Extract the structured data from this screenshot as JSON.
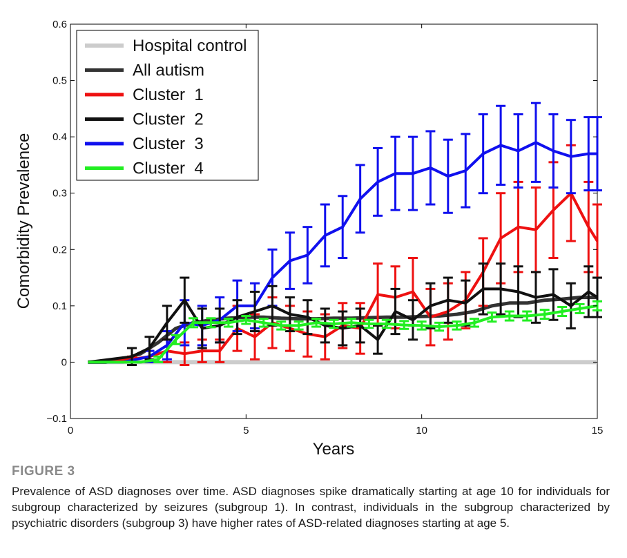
{
  "chart_data": {
    "type": "line",
    "title": "",
    "xlabel": "Years",
    "ylabel": "Comorbidity Prevalence",
    "xlim": [
      0,
      15
    ],
    "ylim": [
      -0.1,
      0.6
    ],
    "x_ticks": [
      "0",
      "5",
      "10",
      "15"
    ],
    "y_ticks": [
      "−0.1",
      "0",
      "0.1",
      "0.2",
      "0.3",
      "0.4",
      "0.5",
      "0.6"
    ],
    "grid": false,
    "legend_position": "top-left",
    "series": [
      {
        "name": "Hospital control",
        "color": "#cccccc",
        "x": [
          0.5,
          15
        ],
        "y": [
          0,
          0
        ]
      },
      {
        "name": "All autism",
        "color": "#333333",
        "x": [
          0.5,
          1,
          1.5,
          2,
          2.5,
          3,
          3.5,
          4,
          4.5,
          5,
          5.5,
          6,
          6.5,
          7,
          7.5,
          8,
          8.5,
          9,
          9.5,
          10,
          10.5,
          11,
          11.5,
          12,
          12.5,
          13,
          13.5,
          14,
          14.5,
          15
        ],
        "y": [
          0,
          0,
          0.005,
          0.015,
          0.035,
          0.06,
          0.07,
          0.075,
          0.078,
          0.08,
          0.08,
          0.078,
          0.077,
          0.077,
          0.078,
          0.078,
          0.079,
          0.08,
          0.08,
          0.081,
          0.082,
          0.085,
          0.09,
          0.1,
          0.105,
          0.105,
          0.11,
          0.112,
          0.115,
          0.115
        ]
      },
      {
        "name": "Cluster 1",
        "color": "#ee1111",
        "x": [
          0.5,
          1.75,
          2.25,
          2.75,
          3.25,
          3.75,
          4.25,
          4.75,
          5.25,
          5.75,
          6.25,
          6.75,
          7.25,
          7.75,
          8.25,
          8.75,
          9.25,
          9.75,
          10.25,
          10.75,
          11.25,
          11.75,
          12.25,
          12.75,
          13.25,
          13.75,
          14.25,
          14.75,
          15
        ],
        "y": [
          0,
          0.005,
          0.01,
          0.02,
          0.015,
          0.02,
          0.02,
          0.06,
          0.045,
          0.07,
          0.06,
          0.05,
          0.045,
          0.065,
          0.06,
          0.12,
          0.115,
          0.125,
          0.08,
          0.09,
          0.11,
          0.16,
          0.22,
          0.24,
          0.235,
          0.27,
          0.3,
          0.24,
          0.215
        ],
        "err": [
          0,
          0.005,
          0.01,
          0.02,
          0.02,
          0.02,
          0.02,
          0.04,
          0.04,
          0.045,
          0.04,
          0.04,
          0.04,
          0.04,
          0.045,
          0.055,
          0.055,
          0.06,
          0.05,
          0.05,
          0.05,
          0.06,
          0.08,
          0.08,
          0.075,
          0.085,
          0.085,
          0.08,
          0.065
        ]
      },
      {
        "name": "Cluster 2",
        "color": "#111111",
        "x": [
          0.5,
          1.75,
          2.25,
          2.75,
          3.25,
          3.75,
          4.25,
          4.75,
          5.25,
          5.75,
          6.25,
          6.75,
          7.25,
          7.75,
          8.25,
          8.75,
          9.25,
          9.75,
          10.25,
          10.75,
          11.25,
          11.75,
          12.25,
          12.75,
          13.25,
          13.75,
          14.25,
          14.75,
          15
        ],
        "y": [
          0,
          0.01,
          0.025,
          0.07,
          0.11,
          0.06,
          0.065,
          0.08,
          0.09,
          0.1,
          0.085,
          0.08,
          0.065,
          0.06,
          0.065,
          0.04,
          0.09,
          0.075,
          0.1,
          0.11,
          0.105,
          0.13,
          0.13,
          0.125,
          0.115,
          0.12,
          0.1,
          0.125,
          0.115
        ],
        "err": [
          0,
          0.015,
          0.02,
          0.03,
          0.04,
          0.035,
          0.03,
          0.03,
          0.035,
          0.035,
          0.03,
          0.03,
          0.03,
          0.03,
          0.03,
          0.025,
          0.04,
          0.035,
          0.04,
          0.04,
          0.04,
          0.045,
          0.045,
          0.045,
          0.045,
          0.045,
          0.04,
          0.045,
          0.035
        ]
      },
      {
        "name": "Cluster 3",
        "color": "#1010ee",
        "x": [
          0.5,
          1.5,
          2.25,
          2.75,
          3.25,
          3.75,
          4.25,
          4.75,
          5.25,
          5.75,
          6.25,
          6.75,
          7.25,
          7.75,
          8.25,
          8.75,
          9.25,
          9.75,
          10.25,
          10.75,
          11.25,
          11.75,
          12.25,
          12.75,
          13.25,
          13.75,
          14.25,
          14.75,
          15
        ],
        "y": [
          0,
          0,
          0.01,
          0.03,
          0.07,
          0.065,
          0.075,
          0.1,
          0.1,
          0.15,
          0.18,
          0.19,
          0.225,
          0.24,
          0.29,
          0.32,
          0.335,
          0.335,
          0.345,
          0.33,
          0.34,
          0.37,
          0.385,
          0.375,
          0.39,
          0.375,
          0.365,
          0.37,
          0.37
        ],
        "err": [
          0,
          0,
          0.01,
          0.025,
          0.04,
          0.035,
          0.04,
          0.045,
          0.04,
          0.05,
          0.05,
          0.05,
          0.055,
          0.055,
          0.06,
          0.06,
          0.065,
          0.065,
          0.065,
          0.065,
          0.065,
          0.07,
          0.07,
          0.065,
          0.07,
          0.065,
          0.065,
          0.065,
          0.065
        ]
      },
      {
        "name": "Cluster 4",
        "color": "#22ee22",
        "x": [
          0.5,
          1,
          1.5,
          2,
          2.5,
          3,
          3.5,
          4,
          4.5,
          5,
          5.5,
          6,
          6.5,
          7,
          7.5,
          8,
          8.5,
          9,
          9.5,
          10,
          10.5,
          11,
          11.5,
          12,
          12.5,
          13,
          13.5,
          14,
          14.5,
          15
        ],
        "y": [
          0,
          0,
          0,
          0,
          0.005,
          0.04,
          0.07,
          0.07,
          0.07,
          0.075,
          0.07,
          0.065,
          0.065,
          0.07,
          0.068,
          0.07,
          0.068,
          0.068,
          0.066,
          0.065,
          0.063,
          0.065,
          0.07,
          0.08,
          0.082,
          0.082,
          0.085,
          0.09,
          0.095,
          0.1
        ],
        "err": [
          0,
          0,
          0,
          0,
          0.005,
          0.008,
          0.008,
          0.008,
          0.007,
          0.007,
          0.007,
          0.007,
          0.007,
          0.007,
          0.007,
          0.007,
          0.007,
          0.007,
          0.007,
          0.007,
          0.007,
          0.007,
          0.007,
          0.008,
          0.008,
          0.008,
          0.008,
          0.008,
          0.008,
          0.008
        ]
      }
    ]
  },
  "caption": {
    "label": "FIGURE 3",
    "text": "Prevalence of ASD diagnoses over time. ASD diagnoses spike dramatically starting at age 10 for individuals for subgroup characterized by seizures (subgroup 1). In contrast, individuals in the subgroup characterized by psychiatric disorders (subgroup 3) have higher rates of ASD-related diagnoses starting at age 5."
  }
}
